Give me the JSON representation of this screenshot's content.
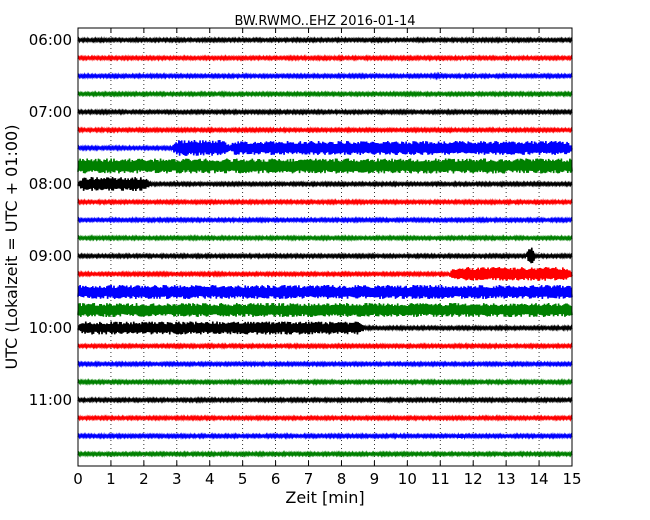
{
  "chart_data": {
    "type": "line",
    "title": "BW.RWMO..EHZ 2016-01-14",
    "xlabel": "Zeit  [min]",
    "ylabel": "UTC (Lokalzeit = UTC + 01:00)",
    "xlim": [
      0,
      15
    ],
    "x_ticks": [
      "0",
      "1",
      "2",
      "3",
      "4",
      "5",
      "6",
      "7",
      "8",
      "9",
      "10",
      "11",
      "12",
      "13",
      "14",
      "15"
    ],
    "y_ticks": [
      {
        "label": "06:00",
        "minutes": 0
      },
      {
        "label": "07:00",
        "minutes": 60
      },
      {
        "label": "08:00",
        "minutes": 120
      },
      {
        "label": "09:00",
        "minutes": 180
      },
      {
        "label": "10:00",
        "minutes": 240
      },
      {
        "label": "11:00",
        "minutes": 300
      }
    ],
    "grid": "vertical dotted",
    "trace_colors": [
      "#000000",
      "#ff0000",
      "#0000ff",
      "#008000"
    ],
    "traces": [
      {
        "start": "06:00",
        "color": "#000000",
        "base_amp": 1.2,
        "bursts": []
      },
      {
        "start": "06:15",
        "color": "#ff0000",
        "base_amp": 1.2,
        "bursts": []
      },
      {
        "start": "06:30",
        "color": "#0000ff",
        "base_amp": 1.2,
        "bursts": [
          {
            "x0": 10.8,
            "x1": 11.0,
            "amp": 3
          }
        ]
      },
      {
        "start": "06:45",
        "color": "#008000",
        "base_amp": 1.2,
        "bursts": []
      },
      {
        "start": "07:00",
        "color": "#000000",
        "base_amp": 1.2,
        "bursts": []
      },
      {
        "start": "07:15",
        "color": "#ff0000",
        "base_amp": 1.2,
        "bursts": []
      },
      {
        "start": "07:30",
        "color": "#0000ff",
        "base_amp": 1.2,
        "bursts": [
          {
            "x0": 2.85,
            "x1": 4.6,
            "amp": 8
          },
          {
            "x0": 4.6,
            "x1": 15.0,
            "amp": 7
          }
        ]
      },
      {
        "start": "07:45",
        "color": "#008000",
        "base_amp": 7.5,
        "bursts": []
      },
      {
        "start": "08:00",
        "color": "#000000",
        "base_amp": 1.2,
        "bursts": [
          {
            "x0": 0.0,
            "x1": 2.2,
            "amp": 7
          }
        ]
      },
      {
        "start": "08:15",
        "color": "#ff0000",
        "base_amp": 1.2,
        "bursts": []
      },
      {
        "start": "08:30",
        "color": "#0000ff",
        "base_amp": 1.2,
        "bursts": []
      },
      {
        "start": "08:45",
        "color": "#008000",
        "base_amp": 1.2,
        "bursts": []
      },
      {
        "start": "09:00",
        "color": "#000000",
        "base_amp": 1.2,
        "bursts": [
          {
            "x0": 13.65,
            "x1": 13.85,
            "amp": 14
          }
        ]
      },
      {
        "start": "09:15",
        "color": "#ff0000",
        "base_amp": 1.2,
        "bursts": [
          {
            "x0": 11.3,
            "x1": 15.0,
            "amp": 7
          }
        ]
      },
      {
        "start": "09:30",
        "color": "#0000ff",
        "base_amp": 7,
        "bursts": []
      },
      {
        "start": "09:45",
        "color": "#008000",
        "base_amp": 7,
        "bursts": []
      },
      {
        "start": "10:00",
        "color": "#000000",
        "base_amp": 1.2,
        "bursts": [
          {
            "x0": 0.0,
            "x1": 8.7,
            "amp": 6.5
          }
        ]
      },
      {
        "start": "10:15",
        "color": "#ff0000",
        "base_amp": 1.2,
        "bursts": []
      },
      {
        "start": "10:30",
        "color": "#0000ff",
        "base_amp": 1.2,
        "bursts": []
      },
      {
        "start": "10:45",
        "color": "#008000",
        "base_amp": 1.2,
        "bursts": []
      },
      {
        "start": "11:00",
        "color": "#000000",
        "base_amp": 1.2,
        "bursts": []
      },
      {
        "start": "11:15",
        "color": "#ff0000",
        "base_amp": 1.2,
        "bursts": []
      },
      {
        "start": "11:30",
        "color": "#0000ff",
        "base_amp": 1.2,
        "bursts": [
          {
            "x0": 11.5,
            "x1": 11.8,
            "amp": 3
          }
        ]
      },
      {
        "start": "11:45",
        "color": "#008000",
        "base_amp": 1.2,
        "bursts": []
      }
    ]
  }
}
